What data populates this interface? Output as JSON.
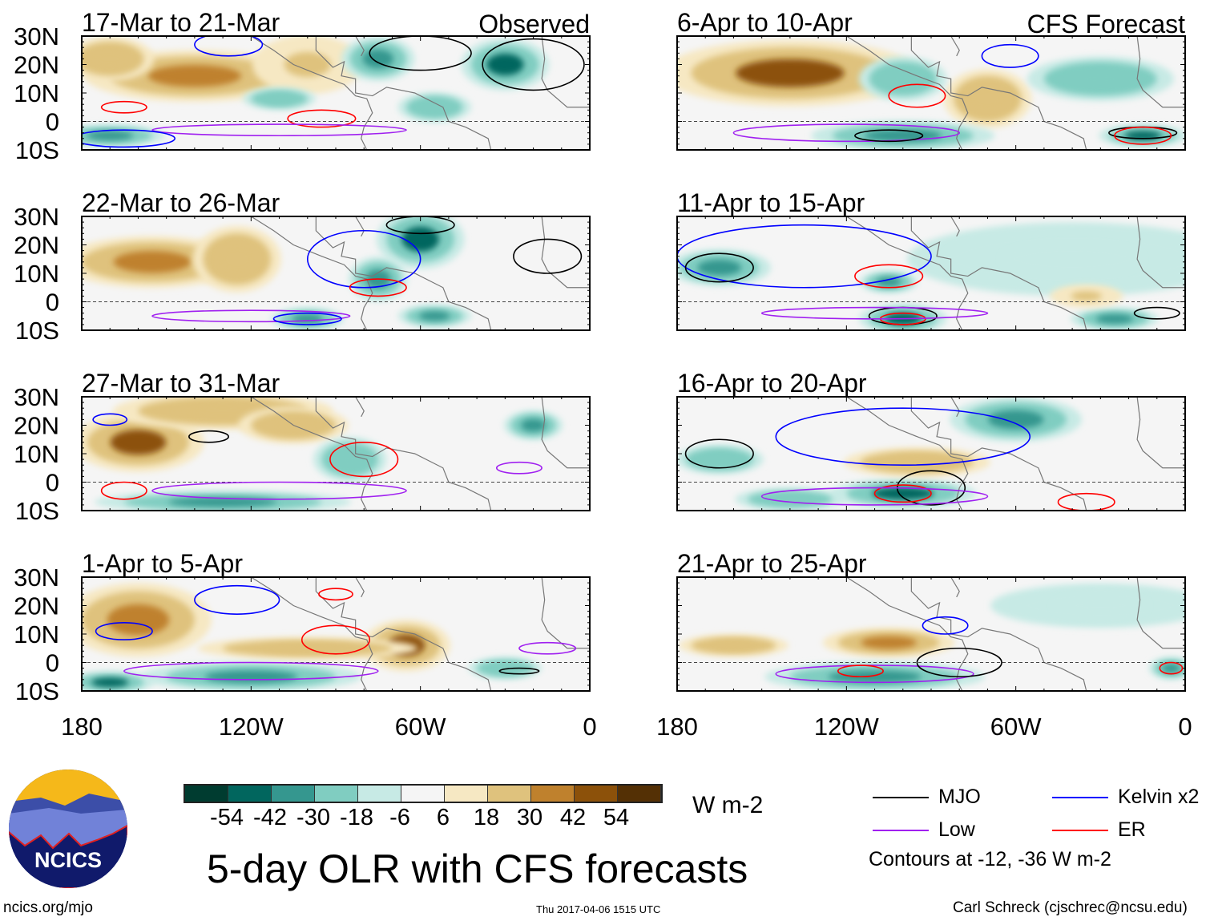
{
  "chart_data": {
    "type": "heatmap",
    "title": "5-day OLR with CFS forecasts",
    "units": "W m-2",
    "column_labels": [
      "Observed",
      "CFS Forecast"
    ],
    "lat_ticks": [
      "30N",
      "20N",
      "10N",
      "0",
      "10S"
    ],
    "lon_ticks": [
      "180",
      "120W",
      "60W",
      "0"
    ],
    "colorbar": {
      "levels": [
        "-54",
        "-42",
        "-30",
        "-18",
        "-6",
        "6",
        "18",
        "30",
        "42",
        "54"
      ],
      "colors": [
        "#003c30",
        "#01665e",
        "#35978f",
        "#80cdc1",
        "#c7eae5",
        "#f5f5f5",
        "#f6e8c3",
        "#dfc27d",
        "#bf812d",
        "#8c510a",
        "#543005"
      ]
    },
    "legend": {
      "items": [
        {
          "label": "MJO",
          "color": "#000000"
        },
        {
          "label": "Kelvin x2",
          "color": "#0000ff"
        },
        {
          "label": "Low",
          "color": "#a020f0"
        },
        {
          "label": "ER",
          "color": "#ff0000"
        }
      ],
      "note": "Contours at -12, -36 W m-2"
    },
    "panels": [
      {
        "title": "17-Mar to 21-Mar",
        "column": "Observed",
        "anomalies": [
          {
            "lonW": 140,
            "lat": 16,
            "rlon": 30,
            "rlat": 7,
            "value": 40
          },
          {
            "lonW": 170,
            "lat": 22,
            "rlon": 12,
            "rlat": 6,
            "value": 25
          },
          {
            "lonW": 100,
            "lat": 20,
            "rlon": 15,
            "rlat": 8,
            "value": 20
          },
          {
            "lonW": 30,
            "lat": 20,
            "rlon": 12,
            "rlat": 7,
            "value": -45
          },
          {
            "lonW": 75,
            "lat": 22,
            "rlon": 10,
            "rlat": 6,
            "value": -30
          },
          {
            "lonW": 170,
            "lat": -5,
            "rlon": 15,
            "rlat": 3,
            "value": -40
          },
          {
            "lonW": 110,
            "lat": 8,
            "rlon": 10,
            "rlat": 3,
            "value": -20
          },
          {
            "lonW": 55,
            "lat": 5,
            "rlon": 10,
            "rlat": 4,
            "value": -20
          }
        ],
        "contours": [
          {
            "kind": "Kelvin",
            "lonW": 128,
            "lat": 27,
            "rlon": 12,
            "rlat": 4
          },
          {
            "kind": "MJO",
            "lonW": 60,
            "lat": 24,
            "rlon": 18,
            "rlat": 6
          },
          {
            "kind": "MJO",
            "lonW": 20,
            "lat": 20,
            "rlon": 18,
            "rlat": 9
          },
          {
            "kind": "ER",
            "lonW": 165,
            "lat": 5,
            "rlon": 8,
            "rlat": 2
          },
          {
            "kind": "ER",
            "lonW": 95,
            "lat": 1,
            "rlon": 12,
            "rlat": 3
          },
          {
            "kind": "Low",
            "lonW": 110,
            "lat": -3,
            "rlon": 45,
            "rlat": 2
          },
          {
            "kind": "Kelvin",
            "lonW": 165,
            "lat": -6,
            "rlon": 18,
            "rlat": 3
          }
        ]
      },
      {
        "title": "6-Apr to 10-Apr",
        "column": "CFS Forecast",
        "anomalies": [
          {
            "lonW": 140,
            "lat": 17,
            "rlon": 35,
            "rlat": 9,
            "value": 45
          },
          {
            "lonW": 70,
            "lat": 8,
            "rlon": 12,
            "rlat": 8,
            "value": 25
          },
          {
            "lonW": 100,
            "lat": 15,
            "rlon": 12,
            "rlat": 6,
            "value": -25
          },
          {
            "lonW": 30,
            "lat": 15,
            "rlon": 20,
            "rlat": 6,
            "value": -25
          },
          {
            "lonW": 100,
            "lat": -5,
            "rlon": 25,
            "rlat": 4,
            "value": -35
          },
          {
            "lonW": 15,
            "lat": -5,
            "rlon": 12,
            "rlat": 3,
            "value": -45
          }
        ],
        "contours": [
          {
            "kind": "Kelvin",
            "lonW": 62,
            "lat": 23,
            "rlon": 10,
            "rlat": 4
          },
          {
            "kind": "ER",
            "lonW": 95,
            "lat": 9,
            "rlon": 10,
            "rlat": 4
          },
          {
            "kind": "Low",
            "lonW": 120,
            "lat": -4,
            "rlon": 40,
            "rlat": 3
          },
          {
            "kind": "MJO",
            "lonW": 105,
            "lat": -5,
            "rlon": 12,
            "rlat": 2
          },
          {
            "kind": "MJO",
            "lonW": 15,
            "lat": -4,
            "rlon": 12,
            "rlat": 2
          },
          {
            "kind": "ER",
            "lonW": 15,
            "lat": -5,
            "rlon": 10,
            "rlat": 3
          }
        ]
      },
      {
        "title": "22-Mar to 26-Mar",
        "column": "Observed",
        "anomalies": [
          {
            "lonW": 155,
            "lat": 14,
            "rlon": 25,
            "rlat": 7,
            "value": 40
          },
          {
            "lonW": 125,
            "lat": 15,
            "rlon": 12,
            "rlat": 9,
            "value": 30
          },
          {
            "lonW": 60,
            "lat": 22,
            "rlon": 12,
            "rlat": 8,
            "value": -45
          },
          {
            "lonW": 75,
            "lat": 8,
            "rlon": 8,
            "rlat": 6,
            "value": -30
          },
          {
            "lonW": 100,
            "lat": -6,
            "rlon": 10,
            "rlat": 3,
            "value": -40
          },
          {
            "lonW": 55,
            "lat": -5,
            "rlon": 10,
            "rlat": 3,
            "value": -30
          }
        ],
        "contours": [
          {
            "kind": "Kelvin",
            "lonW": 80,
            "lat": 15,
            "rlon": 20,
            "rlat": 10
          },
          {
            "kind": "MJO",
            "lonW": 60,
            "lat": 27,
            "rlon": 12,
            "rlat": 3
          },
          {
            "kind": "MJO",
            "lonW": 15,
            "lat": 16,
            "rlon": 12,
            "rlat": 6
          },
          {
            "kind": "ER",
            "lonW": 75,
            "lat": 5,
            "rlon": 10,
            "rlat": 3
          },
          {
            "kind": "Low",
            "lonW": 120,
            "lat": -5,
            "rlon": 35,
            "rlat": 2
          },
          {
            "kind": "Kelvin",
            "lonW": 100,
            "lat": -6,
            "rlon": 12,
            "rlat": 2
          }
        ]
      },
      {
        "title": "11-Apr to 15-Apr",
        "column": "CFS Forecast",
        "anomalies": [
          {
            "lonW": 165,
            "lat": 12,
            "rlon": 14,
            "rlat": 5,
            "value": -30
          },
          {
            "lonW": 105,
            "lat": 7,
            "rlon": 8,
            "rlat": 3,
            "value": -30
          },
          {
            "lonW": 100,
            "lat": -6,
            "rlon": 12,
            "rlat": 4,
            "value": -50
          },
          {
            "lonW": 25,
            "lat": -6,
            "rlon": 12,
            "rlat": 3,
            "value": -35
          },
          {
            "lonW": 40,
            "lat": 15,
            "rlon": 45,
            "rlat": 10,
            "value": -10
          },
          {
            "lonW": 35,
            "lat": 2,
            "rlon": 10,
            "rlat": 3,
            "value": 20
          }
        ],
        "contours": [
          {
            "kind": "Kelvin",
            "lonW": 135,
            "lat": 16,
            "rlon": 45,
            "rlat": 11
          },
          {
            "kind": "MJO",
            "lonW": 165,
            "lat": 12,
            "rlon": 12,
            "rlat": 5
          },
          {
            "kind": "ER",
            "lonW": 105,
            "lat": 9,
            "rlon": 12,
            "rlat": 4
          },
          {
            "kind": "MJO",
            "lonW": 100,
            "lat": -5,
            "rlon": 12,
            "rlat": 3
          },
          {
            "kind": "ER",
            "lonW": 100,
            "lat": -6,
            "rlon": 8,
            "rlat": 2
          },
          {
            "kind": "Low",
            "lonW": 110,
            "lat": -4,
            "rlon": 40,
            "rlat": 2
          },
          {
            "kind": "MJO",
            "lonW": 10,
            "lat": -4,
            "rlon": 8,
            "rlat": 2
          }
        ]
      },
      {
        "title": "27-Mar to 31-Mar",
        "column": "Observed",
        "anomalies": [
          {
            "lonW": 160,
            "lat": 14,
            "rlon": 18,
            "rlat": 8,
            "value": 45
          },
          {
            "lonW": 130,
            "lat": 25,
            "rlon": 30,
            "rlat": 5,
            "value": 25
          },
          {
            "lonW": 105,
            "lat": 20,
            "rlon": 15,
            "rlat": 5,
            "value": 25
          },
          {
            "lonW": 130,
            "lat": -7,
            "rlon": 35,
            "rlat": 3,
            "value": -35
          },
          {
            "lonW": 85,
            "lat": 8,
            "rlon": 10,
            "rlat": 6,
            "value": -20
          },
          {
            "lonW": 20,
            "lat": 20,
            "rlon": 8,
            "rlat": 4,
            "value": -30
          }
        ],
        "contours": [
          {
            "kind": "MJO",
            "lonW": 135,
            "lat": 16,
            "rlon": 7,
            "rlat": 2
          },
          {
            "kind": "ER",
            "lonW": 80,
            "lat": 8,
            "rlon": 12,
            "rlat": 6
          },
          {
            "kind": "Low",
            "lonW": 110,
            "lat": -3,
            "rlon": 45,
            "rlat": 3
          },
          {
            "kind": "ER",
            "lonW": 165,
            "lat": -3,
            "rlon": 8,
            "rlat": 3
          },
          {
            "kind": "Kelvin",
            "lonW": 170,
            "lat": 22,
            "rlon": 6,
            "rlat": 2
          },
          {
            "kind": "Low",
            "lonW": 25,
            "lat": 5,
            "rlon": 8,
            "rlat": 2
          }
        ]
      },
      {
        "title": "16-Apr to 20-Apr",
        "column": "CFS Forecast",
        "anomalies": [
          {
            "lonW": 60,
            "lat": 22,
            "rlon": 18,
            "rlat": 6,
            "value": -30
          },
          {
            "lonW": 100,
            "lat": -4,
            "rlon": 20,
            "rlat": 4,
            "value": -45
          },
          {
            "lonW": 95,
            "lat": 7,
            "rlon": 20,
            "rlat": 4,
            "value": 25
          },
          {
            "lonW": 165,
            "lat": 8,
            "rlon": 12,
            "rlat": 4,
            "value": -25
          },
          {
            "lonW": 140,
            "lat": -6,
            "rlon": 15,
            "rlat": 3,
            "value": -20
          }
        ],
        "contours": [
          {
            "kind": "Kelvin",
            "lonW": 100,
            "lat": 16,
            "rlon": 45,
            "rlat": 10
          },
          {
            "kind": "MJO",
            "lonW": 165,
            "lat": 10,
            "rlon": 12,
            "rlat": 5
          },
          {
            "kind": "MJO",
            "lonW": 90,
            "lat": -2,
            "rlon": 12,
            "rlat": 6
          },
          {
            "kind": "ER",
            "lonW": 100,
            "lat": -4,
            "rlon": 10,
            "rlat": 3
          },
          {
            "kind": "Low",
            "lonW": 110,
            "lat": -5,
            "rlon": 40,
            "rlat": 3
          },
          {
            "kind": "ER",
            "lonW": 35,
            "lat": -7,
            "rlon": 10,
            "rlat": 3
          }
        ]
      },
      {
        "title": "1-Apr to 5-Apr",
        "column": "Observed",
        "anomalies": [
          {
            "lonW": 160,
            "lat": 15,
            "rlon": 20,
            "rlat": 10,
            "value": 40
          },
          {
            "lonW": 65,
            "lat": 6,
            "rlon": 12,
            "rlat": 7,
            "value": 45
          },
          {
            "lonW": 120,
            "lat": -5,
            "rlon": 30,
            "rlat": 4,
            "value": -40
          },
          {
            "lonW": 170,
            "lat": -7,
            "rlon": 12,
            "rlat": 3,
            "value": -45
          },
          {
            "lonW": 30,
            "lat": -2,
            "rlon": 10,
            "rlat": 3,
            "value": -25
          },
          {
            "lonW": 100,
            "lat": 5,
            "rlon": 30,
            "rlat": 3,
            "value": 25
          }
        ],
        "contours": [
          {
            "kind": "Kelvin",
            "lonW": 125,
            "lat": 22,
            "rlon": 15,
            "rlat": 5
          },
          {
            "kind": "Kelvin",
            "lonW": 165,
            "lat": 11,
            "rlon": 10,
            "rlat": 3
          },
          {
            "kind": "ER",
            "lonW": 90,
            "lat": 8,
            "rlon": 12,
            "rlat": 5
          },
          {
            "kind": "Low",
            "lonW": 120,
            "lat": -3,
            "rlon": 45,
            "rlat": 3
          },
          {
            "kind": "ER",
            "lonW": 90,
            "lat": 24,
            "rlon": 6,
            "rlat": 2
          },
          {
            "kind": "MJO",
            "lonW": 25,
            "lat": -3,
            "rlon": 7,
            "rlat": 1
          },
          {
            "kind": "Low",
            "lonW": 15,
            "lat": 5,
            "rlon": 10,
            "rlat": 2
          }
        ]
      },
      {
        "title": "21-Apr to 25-Apr",
        "column": "CFS Forecast",
        "anomalies": [
          {
            "lonW": 105,
            "lat": 7,
            "rlon": 18,
            "rlat": 4,
            "value": 40
          },
          {
            "lonW": 110,
            "lat": -5,
            "rlon": 30,
            "rlat": 4,
            "value": -35
          },
          {
            "lonW": 160,
            "lat": 6,
            "rlon": 15,
            "rlat": 3,
            "value": 25
          },
          {
            "lonW": 30,
            "lat": 20,
            "rlon": 30,
            "rlat": 6,
            "value": -15
          },
          {
            "lonW": 5,
            "lat": -2,
            "rlon": 6,
            "rlat": 3,
            "value": -30
          }
        ],
        "contours": [
          {
            "kind": "Low",
            "lonW": 110,
            "lat": -4,
            "rlon": 35,
            "rlat": 3
          },
          {
            "kind": "MJO",
            "lonW": 80,
            "lat": 0,
            "rlon": 15,
            "rlat": 5
          },
          {
            "kind": "ER",
            "lonW": 115,
            "lat": -3,
            "rlon": 8,
            "rlat": 2
          },
          {
            "kind": "Kelvin",
            "lonW": 85,
            "lat": 13,
            "rlon": 8,
            "rlat": 3
          },
          {
            "kind": "ER",
            "lonW": 5,
            "lat": -2,
            "rlon": 4,
            "rlat": 2
          }
        ]
      }
    ]
  },
  "footer": {
    "logo_text": "NCICS",
    "url": "ncics.org/mjo",
    "timestamp": "Thu 2017-04-06 1515 UTC",
    "credit": "Carl Schreck (cjschrec@ncsu.edu)"
  }
}
